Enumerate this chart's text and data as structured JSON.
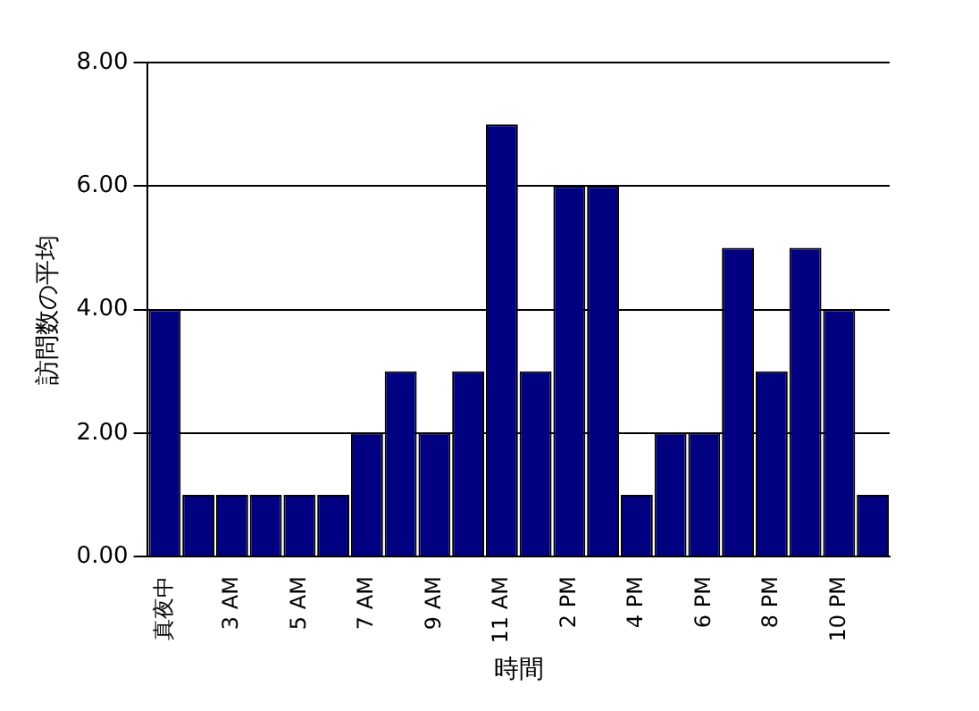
{
  "chart_data": {
    "type": "bar",
    "xlabel": "時間",
    "ylabel": "訪問数の平均",
    "categories": [
      "真夜中",
      null,
      "3 AM",
      null,
      "5 AM",
      null,
      "7 AM",
      null,
      "9 AM",
      null,
      "11 AM",
      null,
      "2 PM",
      null,
      "4 PM",
      null,
      "6 PM",
      null,
      "8 PM",
      null,
      "10 PM",
      null
    ],
    "values": [
      4,
      1,
      1,
      1,
      1,
      1,
      2,
      3,
      2,
      3,
      7,
      3,
      6,
      6,
      1,
      2,
      2,
      5,
      3,
      5,
      4,
      1
    ],
    "color": "#000080",
    "ylim": [
      0,
      8
    ],
    "yticks": [
      {
        "value": 0,
        "label": "0.00"
      },
      {
        "value": 2,
        "label": "2.00"
      },
      {
        "value": 4,
        "label": "4.00"
      },
      {
        "value": 6,
        "label": "6.00"
      },
      {
        "value": 8,
        "label": "8.00"
      }
    ],
    "grid": "y",
    "legend": false
  }
}
